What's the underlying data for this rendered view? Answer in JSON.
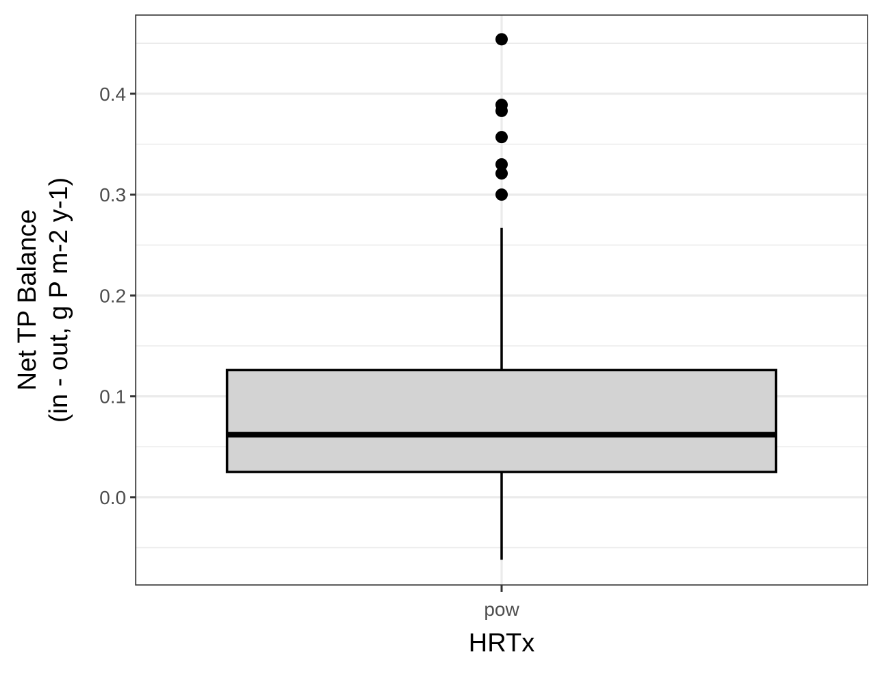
{
  "chart_data": {
    "type": "boxplot",
    "xlabel": "HRTx",
    "ylabel_lines": [
      "Net TP Balance",
      "(in - out, g P m-2 y-1)"
    ],
    "categories": [
      "pow"
    ],
    "boxes": [
      {
        "category": "pow",
        "whisker_low": -0.062,
        "q1": 0.025,
        "median": 0.062,
        "q3": 0.126,
        "whisker_high": 0.267,
        "outliers": [
          0.454,
          0.389,
          0.383,
          0.357,
          0.33,
          0.321,
          0.3
        ]
      }
    ],
    "y_ticks": [
      {
        "value": 0.0,
        "label": "0.0"
      },
      {
        "value": 0.1,
        "label": "0.1"
      },
      {
        "value": 0.2,
        "label": "0.2"
      },
      {
        "value": 0.3,
        "label": "0.3"
      },
      {
        "value": 0.4,
        "label": "0.4"
      }
    ],
    "ylim": [
      -0.087,
      0.478
    ],
    "grid": true,
    "legend": "none",
    "colors": {
      "box_fill": "#d3d3d3",
      "box_stroke": "#000000",
      "grid": "#ebebeb",
      "panel_border": "#333333",
      "tick_label": "#4d4d4d"
    }
  }
}
